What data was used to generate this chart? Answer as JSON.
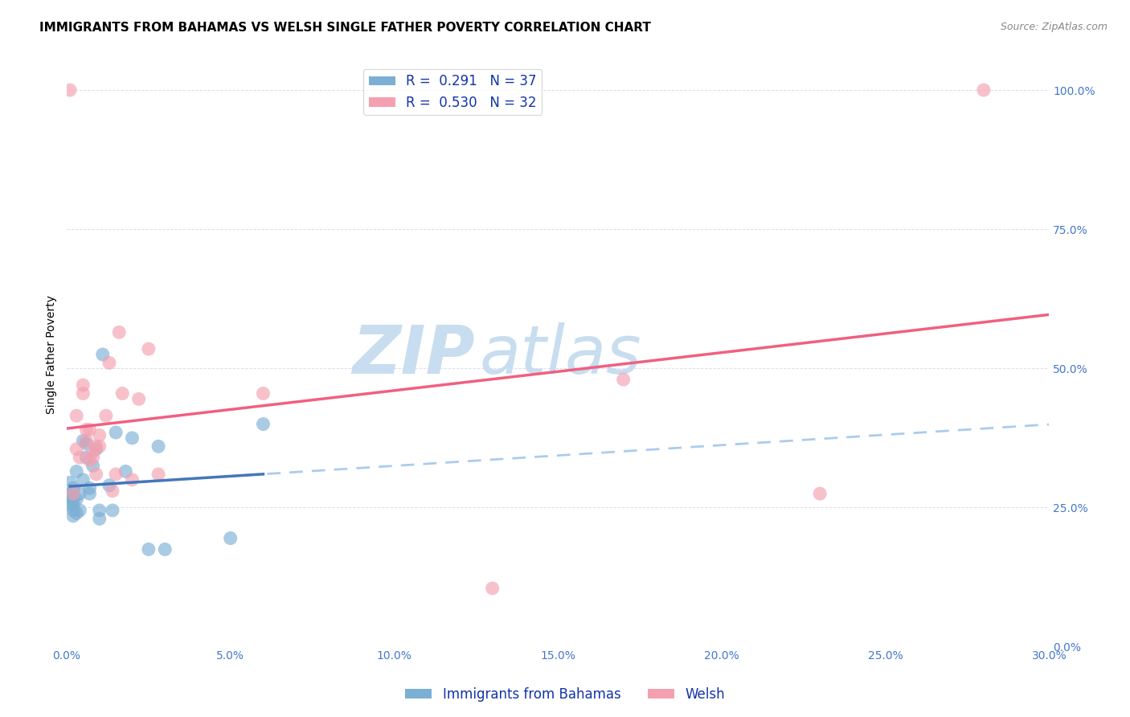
{
  "title": "IMMIGRANTS FROM BAHAMAS VS WELSH SINGLE FATHER POVERTY CORRELATION CHART",
  "source": "Source: ZipAtlas.com",
  "xlabel_label": "Immigrants from Bahamas",
  "ylabel_label": "Single Father Poverty",
  "legend_label1": "Immigrants from Bahamas",
  "legend_label2": "Welsh",
  "R1": 0.291,
  "N1": 37,
  "R2": 0.53,
  "N2": 32,
  "xmin": 0.0,
  "xmax": 0.3,
  "ymin": 0.0,
  "ymax": 1.05,
  "color_blue": "#7BAFD4",
  "color_pink": "#F4A0B0",
  "color_blue_line": "#AACCEE",
  "color_blue_solid": "#4477BB",
  "color_pink_line": "#F06080",
  "blue_x": [
    0.001,
    0.001,
    0.001,
    0.001,
    0.001,
    0.002,
    0.002,
    0.002,
    0.002,
    0.002,
    0.002,
    0.003,
    0.003,
    0.003,
    0.004,
    0.004,
    0.005,
    0.005,
    0.006,
    0.006,
    0.007,
    0.007,
    0.008,
    0.009,
    0.01,
    0.01,
    0.011,
    0.013,
    0.014,
    0.015,
    0.018,
    0.02,
    0.025,
    0.028,
    0.03,
    0.05,
    0.06
  ],
  "blue_y": [
    0.255,
    0.265,
    0.27,
    0.28,
    0.295,
    0.235,
    0.245,
    0.255,
    0.265,
    0.275,
    0.285,
    0.24,
    0.265,
    0.315,
    0.245,
    0.275,
    0.3,
    0.37,
    0.34,
    0.365,
    0.275,
    0.285,
    0.325,
    0.355,
    0.23,
    0.245,
    0.525,
    0.29,
    0.245,
    0.385,
    0.315,
    0.375,
    0.175,
    0.36,
    0.175,
    0.195,
    0.4
  ],
  "pink_x": [
    0.001,
    0.002,
    0.003,
    0.003,
    0.004,
    0.005,
    0.005,
    0.006,
    0.006,
    0.007,
    0.007,
    0.008,
    0.008,
    0.009,
    0.009,
    0.01,
    0.01,
    0.012,
    0.013,
    0.014,
    0.015,
    0.016,
    0.017,
    0.02,
    0.022,
    0.025,
    0.028,
    0.06,
    0.13,
    0.17,
    0.23,
    0.28
  ],
  "pink_y": [
    1.0,
    0.275,
    0.355,
    0.415,
    0.34,
    0.455,
    0.47,
    0.37,
    0.39,
    0.335,
    0.39,
    0.34,
    0.35,
    0.31,
    0.36,
    0.36,
    0.38,
    0.415,
    0.51,
    0.28,
    0.31,
    0.565,
    0.455,
    0.3,
    0.445,
    0.535,
    0.31,
    0.455,
    0.105,
    0.48,
    0.275,
    1.0
  ],
  "watermark_zip": "ZIP",
  "watermark_atlas": "atlas",
  "watermark_color": "#C8DDEF",
  "title_fontsize": 11,
  "axis_label_fontsize": 10,
  "tick_label_fontsize": 10,
  "legend_fontsize": 12
}
